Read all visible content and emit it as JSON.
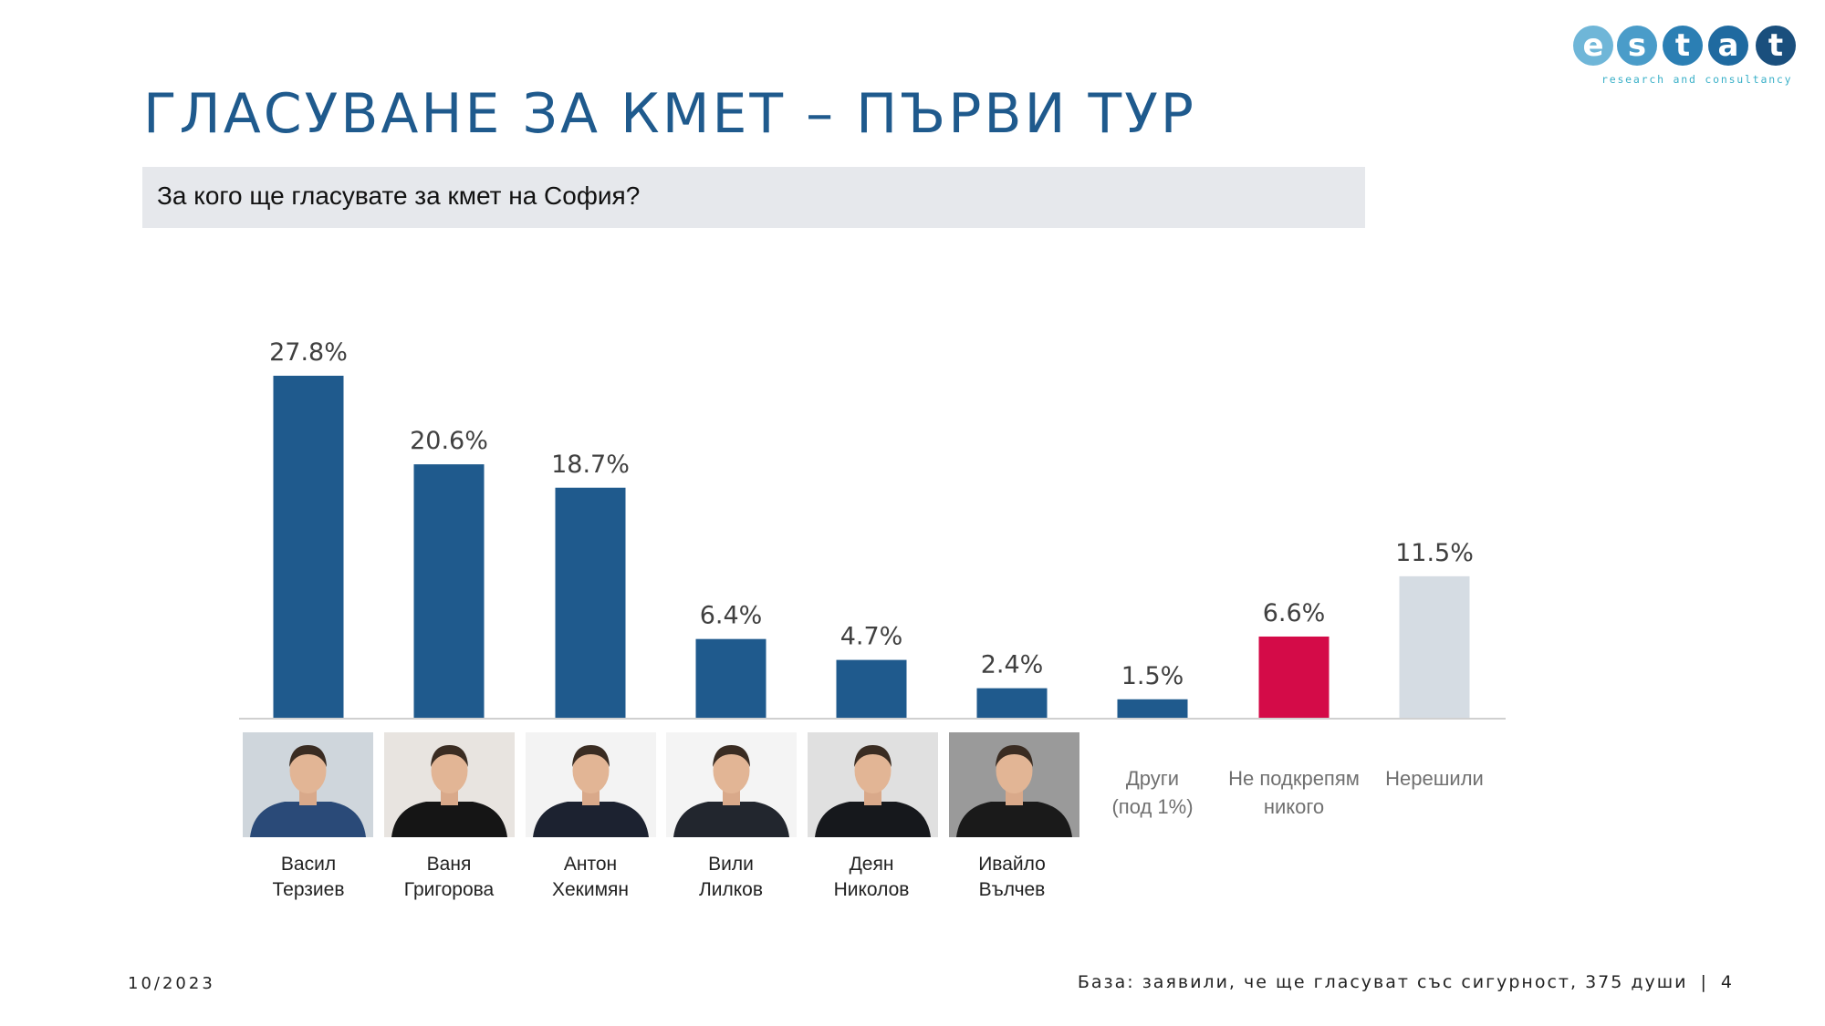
{
  "logo": {
    "letters": [
      "e",
      "s",
      "t",
      "a",
      "t"
    ],
    "tagline": "research and consultancy",
    "colors": [
      "#6fb6d8",
      "#4a9cc9",
      "#2b7fb4",
      "#1f6aa0",
      "#1a4f7d"
    ]
  },
  "title": "ГЛАСУВАНЕ ЗА КМЕТ – ПЪРВИ ТУР",
  "question": "За кого ще гласувате за кмет на София?",
  "chart_data": {
    "type": "bar",
    "categories": [
      "Васил Терзиев",
      "Ваня Григорова",
      "Антон Хекимян",
      "Вили Лилков",
      "Деян Николов",
      "Ивайло Вълчев",
      "Други (под 1%)",
      "Не подкрепям никого",
      "Нерешили"
    ],
    "values": [
      27.8,
      20.6,
      18.7,
      6.4,
      4.7,
      2.4,
      1.5,
      6.6,
      11.5
    ],
    "value_labels": [
      "27.8%",
      "20.6%",
      "18.7%",
      "6.4%",
      "4.7%",
      "2.4%",
      "1.5%",
      "6.6%",
      "11.5%"
    ],
    "colors": [
      "#1f5a8d",
      "#1f5a8d",
      "#1f5a8d",
      "#1f5a8d",
      "#1f5a8d",
      "#1f5a8d",
      "#1f5a8d",
      "#d40b48",
      "#d5dce3"
    ],
    "ylim": [
      0,
      30
    ],
    "grid": false,
    "legend": "none"
  },
  "candidates": [
    {
      "first": "Васил",
      "last": "Терзиев",
      "photo": "candidate-photo",
      "bg": "#cfd6dc",
      "shirt": "#2a4a78"
    },
    {
      "first": "Ваня",
      "last": "Григорова",
      "photo": "candidate-photo",
      "bg": "#e8e4e0",
      "shirt": "#151515"
    },
    {
      "first": "Антон",
      "last": "Хекимян",
      "photo": "candidate-photo",
      "bg": "#f3f3f3",
      "shirt": "#1c2230"
    },
    {
      "first": "Вили",
      "last": "Лилков",
      "photo": "candidate-photo",
      "bg": "#f4f4f4",
      "shirt": "#22262e"
    },
    {
      "first": "Деян",
      "last": "Николов",
      "photo": "candidate-photo",
      "bg": "#e0e0e0",
      "shirt": "#16181c"
    },
    {
      "first": "Ивайло",
      "last": "Вълчев",
      "photo": "candidate-photo",
      "bg": "#9a9a9a",
      "shirt": "#1a1a1a"
    }
  ],
  "other_labels": [
    {
      "line1": "Други",
      "line2": "(под 1%)"
    },
    {
      "line1": "Не подкрепям",
      "line2": "никого"
    },
    {
      "line1": "Нерешили",
      "line2": ""
    }
  ],
  "footer": {
    "date": "10/2023",
    "base": "База: заявили, че ще гласуват със сигурност, 375 души",
    "separator": "|",
    "page_number": "4"
  }
}
